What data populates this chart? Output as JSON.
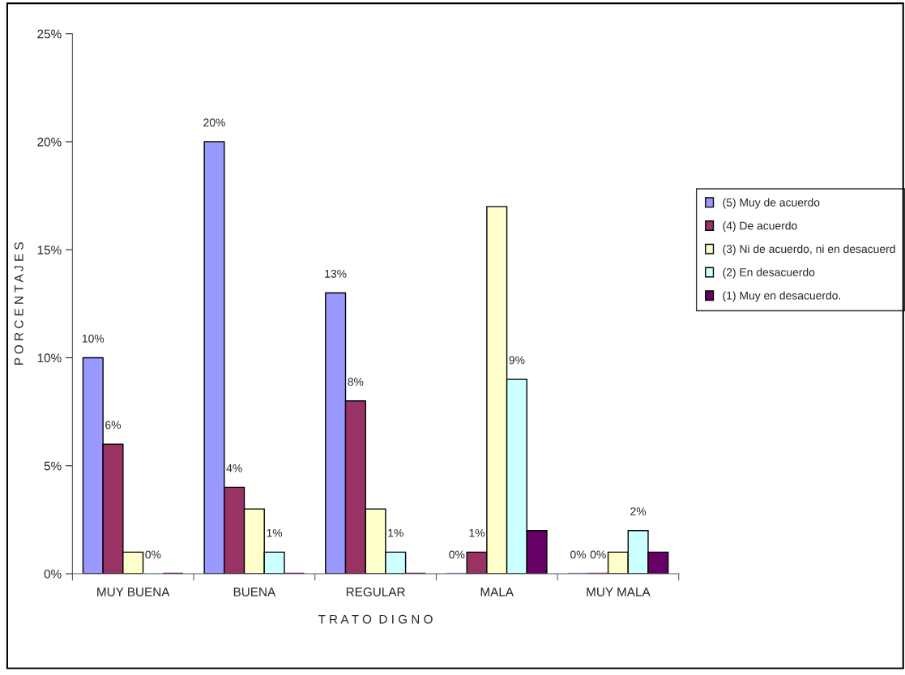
{
  "chart_data": {
    "type": "bar",
    "categories": [
      "MUY BUENA",
      "BUENA",
      "REGULAR",
      "MALA",
      "MUY MALA"
    ],
    "xlabel": "T R A T O  D I G N O",
    "ylabel": "P O R C E N T A J E S",
    "series": [
      {
        "name": "(5) Muy de acuerdo",
        "color": "#9999ff",
        "values": [
          10,
          20,
          13,
          0,
          0
        ],
        "value_labels": [
          "10%",
          "20%",
          "13%",
          "0%",
          "0%"
        ]
      },
      {
        "name": "(4) De acuerdo",
        "color": "#993366",
        "values": [
          6,
          4,
          8,
          1,
          0
        ],
        "value_labels": [
          "6%",
          "4%",
          "8%",
          "1%",
          "0%"
        ]
      },
      {
        "name": "(3) Ni de acuerdo, ni en desacuerd",
        "color": "#ffffcc",
        "values": [
          1,
          3,
          3,
          17,
          1
        ],
        "value_labels": [
          null,
          null,
          null,
          null,
          null
        ]
      },
      {
        "name": "(2) En desacuerdo",
        "color": "#ccffff",
        "values": [
          0,
          1,
          1,
          9,
          2
        ],
        "value_labels": [
          "0%",
          "1%",
          "1%",
          "9%",
          "2%"
        ]
      },
      {
        "name": "(1) Muy en desacuerdo.",
        "color": "#660066",
        "values": [
          0,
          0,
          0,
          2,
          1
        ],
        "value_labels": [
          null,
          null,
          null,
          null,
          null
        ]
      }
    ],
    "ylim": [
      0,
      25
    ],
    "yticks": [
      {
        "value": 0,
        "label": "0%"
      },
      {
        "value": 5,
        "label": "5%"
      },
      {
        "value": 10,
        "label": "10%"
      },
      {
        "value": 15,
        "label": "15%"
      },
      {
        "value": 20,
        "label": "20%"
      },
      {
        "value": 25,
        "label": "25%"
      }
    ],
    "grid": false,
    "legend": "right"
  }
}
